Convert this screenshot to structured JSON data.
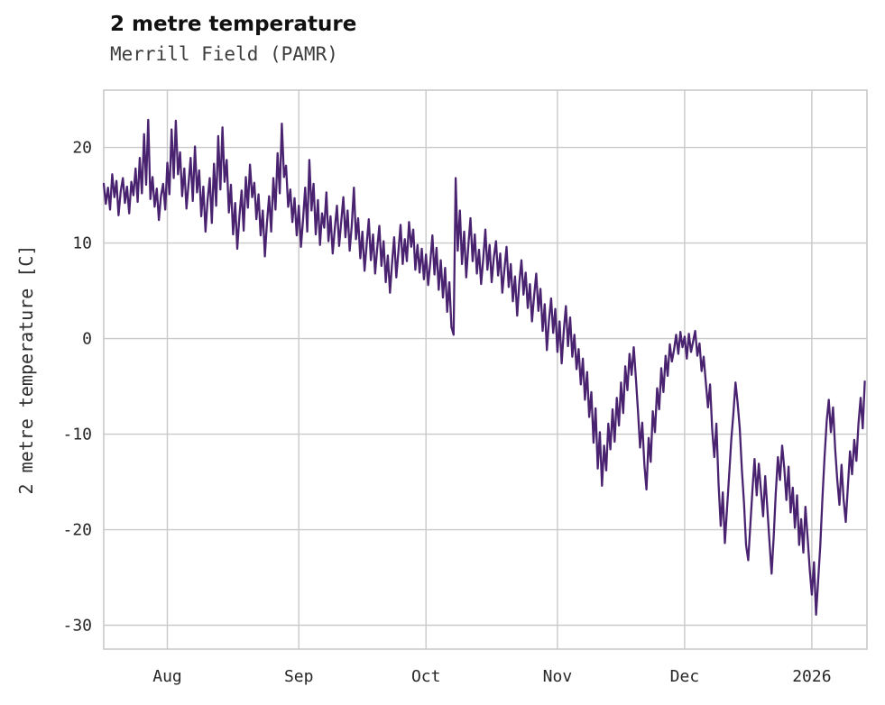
{
  "header": {
    "title": "2 metre temperature",
    "subtitle": "Merrill Field (PAMR)"
  },
  "chart_data": {
    "type": "line",
    "title": "2 metre temperature",
    "subtitle": "Merrill Field (PAMR)",
    "xlabel": "",
    "ylabel": "2 metre temperature [C]",
    "x_tick_labels": [
      "Aug",
      "Sep",
      "Oct",
      "Nov",
      "Dec",
      "2026"
    ],
    "x_tick_days": [
      15,
      46,
      76,
      107,
      137,
      167
    ],
    "x_range_days": [
      0,
      180
    ],
    "x_unit": "days from series start (mid-July), 0.5-day sampling",
    "y_ticks": [
      -30,
      -20,
      -10,
      0,
      10,
      20
    ],
    "ylim": [
      -32.5,
      26
    ],
    "grid": true,
    "legend": "none",
    "line_color": "#4a2370",
    "grid_color": "#c9c9c9",
    "sample_interval_days": 0.5,
    "series": [
      {
        "name": "2 metre temperature",
        "values": [
          16.2,
          14.1,
          15.8,
          13.5,
          17.2,
          14.8,
          16.5,
          12.9,
          15.4,
          16.8,
          14.2,
          15.9,
          13.1,
          16.4,
          15.0,
          17.8,
          14.3,
          18.9,
          15.2,
          21.4,
          16.1,
          22.9,
          14.6,
          16.9,
          13.8,
          15.7,
          12.4,
          14.9,
          16.2,
          13.5,
          18.4,
          15.1,
          21.9,
          16.8,
          22.8,
          17.2,
          19.5,
          14.9,
          17.8,
          13.6,
          16.2,
          18.9,
          14.4,
          20.1,
          15.3,
          17.6,
          12.8,
          15.9,
          11.2,
          14.5,
          16.8,
          12.1,
          18.3,
          13.9,
          21.2,
          15.6,
          22.1,
          16.4,
          18.7,
          13.2,
          16.1,
          10.9,
          14.2,
          9.4,
          12.8,
          15.5,
          11.3,
          16.9,
          13.7,
          18.2,
          14.8,
          16.3,
          12.5,
          15.1,
          10.8,
          13.4,
          8.6,
          12.1,
          14.9,
          11.2,
          16.8,
          13.5,
          19.4,
          15.2,
          22.5,
          16.9,
          18.1,
          13.8,
          15.6,
          12.2,
          14.7,
          10.8,
          13.9,
          9.6,
          12.4,
          15.8,
          11.2,
          18.7,
          13.4,
          16.2,
          10.9,
          14.5,
          9.8,
          13.1,
          11.6,
          15.3,
          10.2,
          12.8,
          8.9,
          11.5,
          13.9,
          9.7,
          12.2,
          14.8,
          10.6,
          13.4,
          9.2,
          11.8,
          15.8,
          10.4,
          12.6,
          8.4,
          11.2,
          7.1,
          9.8,
          12.5,
          8.2,
          10.9,
          6.8,
          9.4,
          11.8,
          7.6,
          10.2,
          5.9,
          8.7,
          4.8,
          7.9,
          10.6,
          6.4,
          9.2,
          11.9,
          7.8,
          10.4,
          8.1,
          12.2,
          9.6,
          11.4,
          7.2,
          9.8,
          6.9,
          9.4,
          6.2,
          8.8,
          5.6,
          7.9,
          10.8,
          6.7,
          9.5,
          5.1,
          8.2,
          4.3,
          7.4,
          2.8,
          5.9,
          1.2,
          0.4,
          16.8,
          9.2,
          13.4,
          7.8,
          11.2,
          6.4,
          9.8,
          12.6,
          8.1,
          10.9,
          6.8,
          9.3,
          5.7,
          8.4,
          11.4,
          7.2,
          9.8,
          5.9,
          8.5,
          10.2,
          6.6,
          8.9,
          4.8,
          7.3,
          9.6,
          5.4,
          7.8,
          3.9,
          6.5,
          2.4,
          5.8,
          8.2,
          4.6,
          6.9,
          3.2,
          5.7,
          1.8,
          4.4,
          6.8,
          2.9,
          5.2,
          0.8,
          3.6,
          -1.2,
          1.9,
          4.2,
          0.6,
          3.1,
          -1.4,
          1.8,
          -2.6,
          0.9,
          3.4,
          -0.8,
          2.2,
          -1.9,
          0.4,
          -3.2,
          -1.1,
          -4.8,
          -2.1,
          -6.4,
          -3.5,
          -8.2,
          -5.6,
          -10.9,
          -7.3,
          -13.6,
          -9.8,
          -15.4,
          -11.2,
          -13.8,
          -8.9,
          -11.6,
          -7.4,
          -10.8,
          -6.2,
          -9.1,
          -4.6,
          -7.8,
          -2.9,
          -5.4,
          -1.6,
          -3.8,
          -0.9,
          -4.2,
          -7.6,
          -11.4,
          -8.8,
          -13.2,
          -15.8,
          -10.4,
          -12.9,
          -7.6,
          -9.8,
          -5.2,
          -7.4,
          -3.1,
          -5.6,
          -1.8,
          -3.9,
          -0.6,
          -2.4,
          -1.2,
          0.4,
          -1.6,
          0.7,
          -0.9,
          0.2,
          -2.1,
          0.5,
          -1.4,
          -0.3,
          0.8,
          -1.8,
          -0.5,
          -3.4,
          -1.9,
          -4.6,
          -7.2,
          -4.8,
          -9.6,
          -12.4,
          -8.9,
          -15.2,
          -19.6,
          -16.1,
          -21.4,
          -17.8,
          -14.2,
          -10.6,
          -7.9,
          -4.6,
          -6.8,
          -9.4,
          -13.8,
          -17.2,
          -21.6,
          -23.2,
          -19.4,
          -15.8,
          -12.6,
          -16.4,
          -13.1,
          -15.9,
          -18.6,
          -14.4,
          -17.8,
          -21.2,
          -24.6,
          -20.8,
          -16.2,
          -12.4,
          -14.8,
          -11.2,
          -13.6,
          -16.9,
          -13.4,
          -18.2,
          -15.6,
          -19.8,
          -16.4,
          -21.6,
          -18.9,
          -22.4,
          -17.6,
          -20.8,
          -24.2,
          -26.8,
          -23.4,
          -28.9,
          -25.2,
          -21.6,
          -16.8,
          -12.4,
          -8.6,
          -6.4,
          -9.8,
          -7.2,
          -11.6,
          -14.8,
          -17.4,
          -13.2,
          -16.8,
          -19.2,
          -15.4,
          -11.8,
          -14.2,
          -10.6,
          -12.8,
          -8.9,
          -6.2,
          -9.4,
          -4.5
        ]
      }
    ]
  }
}
